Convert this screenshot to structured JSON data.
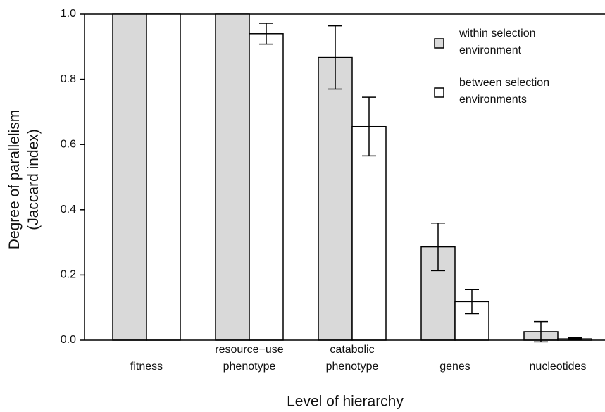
{
  "chart_data": {
    "type": "bar",
    "xlabel": "Level of hierarchy",
    "ylabel": [
      "Degree of parallelism",
      "(Jaccard index)"
    ],
    "categories": [
      [
        "fitness"
      ],
      [
        "resource−use",
        "phenotype"
      ],
      [
        "catabolic",
        "phenotype"
      ],
      [
        "genes"
      ],
      [
        "nucleotides"
      ]
    ],
    "series": [
      {
        "name": [
          "within selection",
          "environment"
        ],
        "color": "#d9d9d9",
        "values": [
          1.0,
          1.0,
          0.867,
          0.286,
          0.026
        ],
        "errors": [
          null,
          null,
          0.097,
          0.073,
          0.031
        ]
      },
      {
        "name": [
          "between selection",
          "environments"
        ],
        "color": "#ffffff",
        "values": [
          1.0,
          0.94,
          0.655,
          0.118,
          0.004
        ],
        "errors": [
          null,
          0.032,
          0.09,
          0.037,
          0.003
        ]
      }
    ],
    "ylim": [
      0,
      1
    ],
    "yticks": [
      {
        "value": 0,
        "label": "0.0"
      },
      0.2,
      0.4,
      0.6,
      0.8,
      {
        "value": 1,
        "label": "1.0"
      }
    ],
    "legend": "upper right"
  }
}
